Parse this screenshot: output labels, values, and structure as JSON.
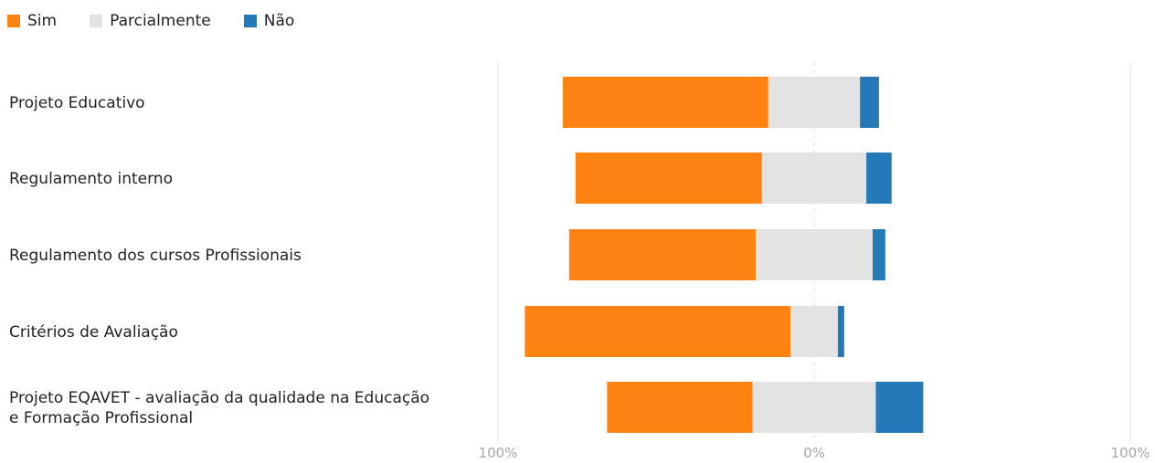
{
  "colors": {
    "sim": "#ff8311",
    "parcialmente": "#e3e3e3",
    "nao": "#2479b8",
    "gridline": "#e6e6e6",
    "center_line": "#d9d9d9"
  },
  "chart_data": {
    "type": "bar",
    "orientation": "horizontal",
    "stacked": "diverging",
    "legend_position": "top-left",
    "categories": [
      [
        "Projeto Educativo"
      ],
      [
        "Regulamento interno"
      ],
      [
        "Regulamento dos cursos Profissionais"
      ],
      [
        "Critérios de Avaliação"
      ],
      [
        "Projeto EQAVET - avaliação da qualidade na Educação",
        "e Formação Profissional"
      ]
    ],
    "series": [
      {
        "name": "Sim",
        "values": [
          65,
          59,
          59,
          84,
          46
        ]
      },
      {
        "name": "Parcialmente",
        "values": [
          29,
          33,
          37,
          15,
          39
        ]
      },
      {
        "name": "Não",
        "values": [
          6,
          8,
          4,
          2,
          15
        ]
      }
    ],
    "parcialmente_split_at_zero": true,
    "xlim": [
      -100,
      100
    ],
    "x_ticks": [
      -100,
      0,
      100
    ],
    "x_tick_labels": [
      "100%",
      "0%",
      "100%"
    ],
    "grid": true
  }
}
